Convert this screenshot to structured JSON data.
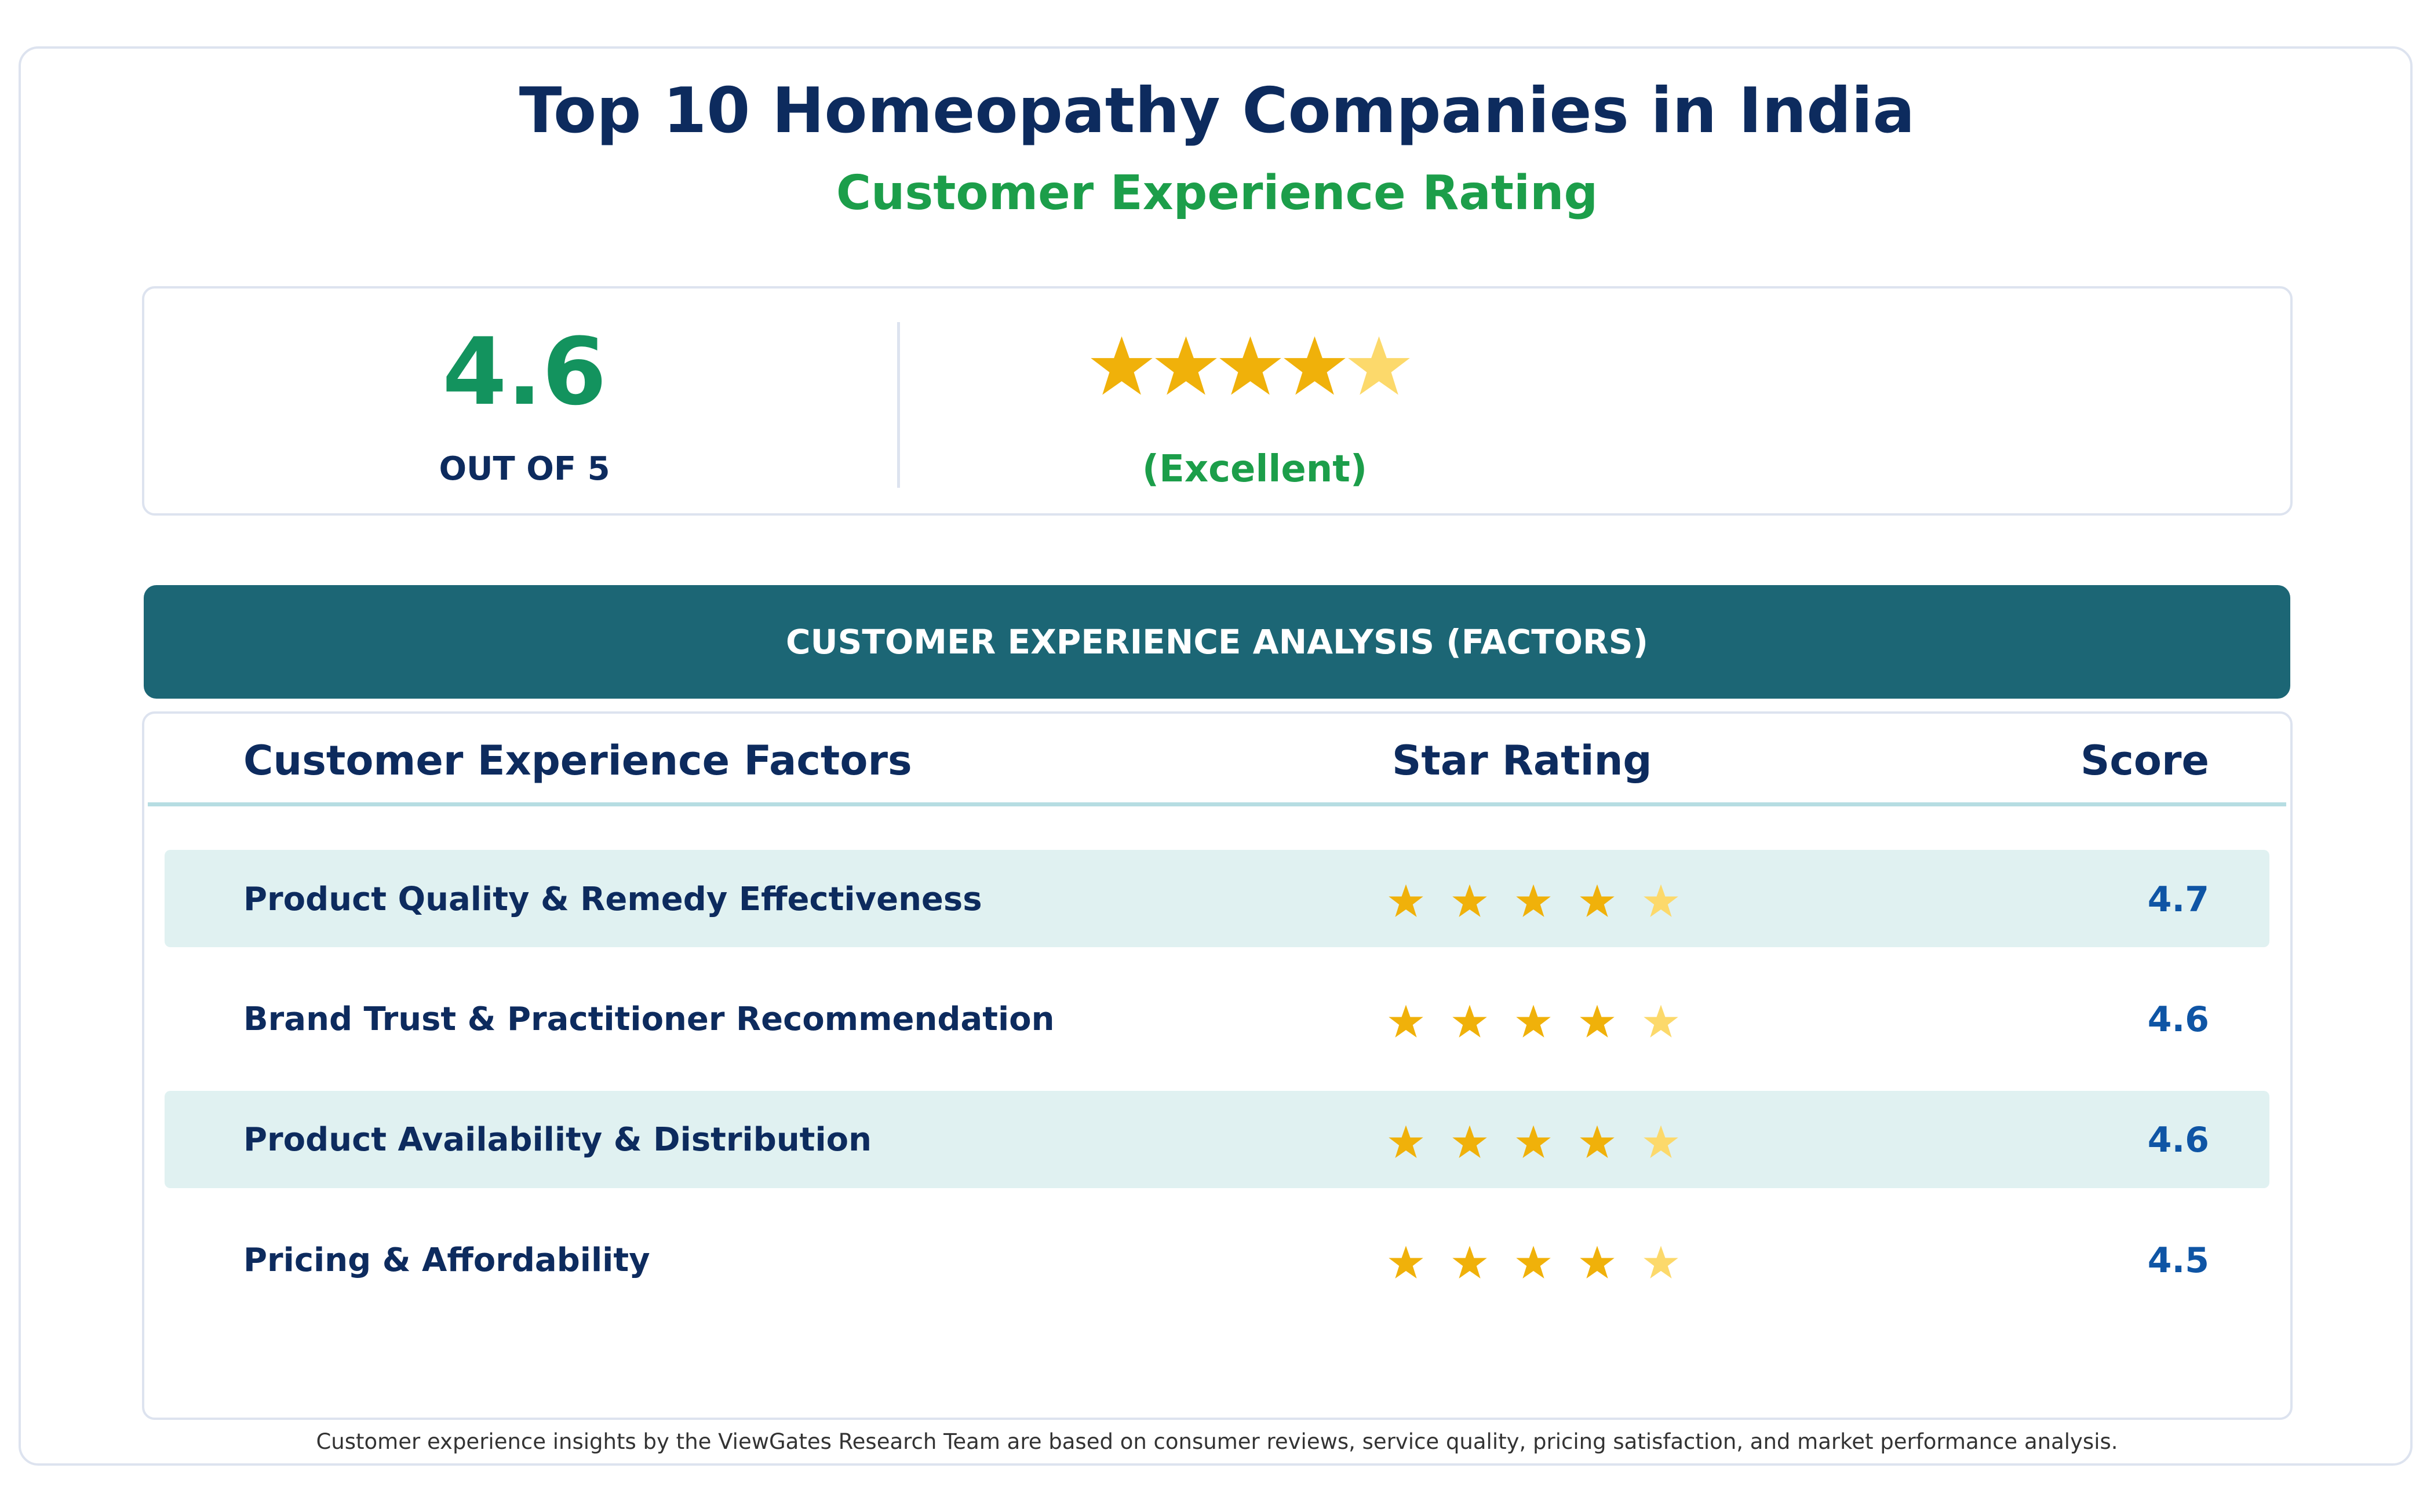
{
  "header": {
    "title": "Top 10 Homeopathy Companies in India",
    "subtitle": "Customer Experience Rating"
  },
  "summary": {
    "score": "4.6",
    "out_of": "OUT OF 5",
    "rating_word": "(Excellent)",
    "stars": {
      "filled": 4,
      "total": 5,
      "icon": "star-icon"
    }
  },
  "section": {
    "banner": "CUSTOMER EXPERIENCE ANALYSIS (FACTORS)"
  },
  "table": {
    "columns": [
      "Customer Experience Factors",
      "Star Rating",
      "Score"
    ],
    "rows": [
      {
        "factor": "Product Quality & Remedy Effectiveness",
        "score": "4.7",
        "filled_stars": 4
      },
      {
        "factor": "Brand Trust & Practitioner Recommendation",
        "score": "4.6",
        "filled_stars": 4
      },
      {
        "factor": "Product Availability & Distribution",
        "score": "4.6",
        "filled_stars": 4
      },
      {
        "factor": "Pricing & Affordability",
        "score": "4.5",
        "filled_stars": 4
      }
    ]
  },
  "footnote": "Customer experience insights by the ViewGates Research Team are based on consumer reviews, service quality, pricing satisfaction, and market performance analysis.",
  "colors": {
    "title": "#0d2b5e",
    "accent_green": "#1c9e4a",
    "score_green": "#13935e",
    "banner": "#1c6675",
    "row_highlight": "#e0f1f1",
    "star_filled": "#f0b10a",
    "star_partial": "#fcd96b",
    "score_blue": "#0f55a5"
  }
}
